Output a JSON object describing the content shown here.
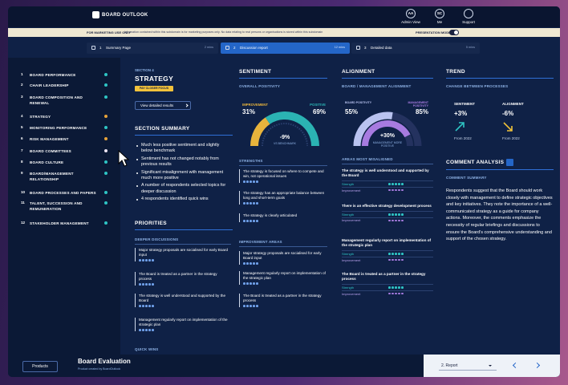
{
  "header": {
    "logo": "BOARD OUTLOOK",
    "menus": [
      {
        "initials": "AA",
        "label": "Admin View"
      },
      {
        "initials": "SC",
        "label": "Me"
      },
      {
        "label": "Support"
      }
    ]
  },
  "notice": {
    "tag": "FOR MARKETING USE ONLY",
    "text": "Information contained within this subdomain is for marketing purposes only. No data relating to real persons or organisations is stored within this subdomain",
    "toggle": "PRESENTATION MODE"
  },
  "tabs": [
    {
      "number": "1",
      "label": "Summary Page",
      "time": "2 mins",
      "active": false
    },
    {
      "number": "2",
      "label": "Discussion report",
      "time": "12 mins",
      "active": true
    },
    {
      "number": "3",
      "label": "Detailed data",
      "time": "5 mins",
      "active": false
    }
  ],
  "nav": [
    {
      "number": "1",
      "label": "BOARD PERFORMANCE",
      "color": "#2ec4c4"
    },
    {
      "number": "2",
      "label": "CHAIR LEADERSHIP",
      "color": "#2ec4c4"
    },
    {
      "number": "3",
      "label": "BOARD COMPOSITION AND RENEWAL",
      "color": "#2ec4c4"
    },
    {
      "number": "4",
      "label": "STRATEGY",
      "color": "#e8a33a"
    },
    {
      "number": "5",
      "label": "MONITORING PERFORMANCE",
      "color": "#2ec4c4"
    },
    {
      "number": "6",
      "label": "RISK MANAGEMENT",
      "color": "#e8a33a"
    },
    {
      "number": "7",
      "label": "BOARD COMMITTEES",
      "color": "#ece4f2"
    },
    {
      "number": "8",
      "label": "BOARD CULTURE",
      "color": "#2ec4c4"
    },
    {
      "number": "9",
      "label": "BOARD/MANAGEMENT RELATIONSHIP",
      "color": "#2ec4c4"
    },
    {
      "number": "10",
      "label": "BOARD PROCESSES AND PAPERS",
      "color": "#2ec4c4"
    },
    {
      "number": "11",
      "label": "TALENT, SUCCESSION AND REMUNERATION",
      "color": "#2ec4c4"
    },
    {
      "number": "12",
      "label": "STAKEHOLDER MANAGEMENT",
      "color": "#2ec4c4"
    }
  ],
  "section": {
    "kicker": "SECTION 4",
    "title": "STRATEGY",
    "badge": "PAY CLOSER FOCUS",
    "button": "View detailed results"
  },
  "summary": {
    "title": "SECTION SUMMARY",
    "bullets": [
      "Much less positive sentiment and slightly below benchmark",
      "Sentiment has not changed notably from previous results",
      "Significant misalignment with management much more positive",
      "A number of respondents selected topics for deeper discussion",
      "4 respondents identified quick wins"
    ]
  },
  "priorities": {
    "title": "PRIORITIES",
    "deeper_title": "DEEPER DISCUSSIONS",
    "deeper": [
      "Major strategy proposals are socialised for early Board input",
      "The Board is treated as a partner in the strategy process",
      "The strategy is well understood and supported by the Board",
      "Management regularly report on implementation of the strategic plan"
    ],
    "quick_title": "QUICK WINS"
  },
  "sentiment": {
    "title": "SENTIMENT",
    "subtitle": "OVERALL POSITIVITY",
    "segments": [
      {
        "name": "IMPROVEMENT",
        "value": 31,
        "label": "31%",
        "color": "#e8b43c"
      },
      {
        "name": "POSITIVE",
        "value": 69,
        "label": "69%",
        "color": "#2bb3b3"
      }
    ],
    "center": "-9%",
    "center_caption": "VS BENCHMARK",
    "strengths_title": "STRENGTHS",
    "strengths": [
      "The strategy is focused on where to compete and win, not operational issues",
      "The strategy has an appropriate balance between long and short-term goals",
      "The strategy is clearly articulated"
    ],
    "improvements_title": "IMPROVEMENT AREAS",
    "improvements": [
      "Major strategy proposals are socialised for early Board input",
      "Management regularly report on implementation of the strategic plan",
      "The Board is treated as a partner in the strategy process"
    ]
  },
  "alignment": {
    "title": "ALIGNMENT",
    "subtitle": "BOARD / MANAGEMENT ALIGNMENT",
    "lim": [
      0,
      100
    ],
    "board": {
      "name": "BOARD POSITIVITY",
      "value": 55,
      "label": "55%",
      "color": "#b9c3f0"
    },
    "management": {
      "name": "MANAGEMENT POSITIVITY",
      "value": 85,
      "label": "85%",
      "color": "#a77be0"
    },
    "center": "+30%",
    "center_caption": "MANAGEMENT MORE POSITIVE",
    "misaligned_title": "AREAS MOST MISALIGNED",
    "misaligned": [
      "The strategy is well understood and supported by the Board",
      "There is an effective strategy development process",
      "Management regularly report on implementation of the strategic plan",
      "The Board is treated as a partner in the strategy process"
    ],
    "row_labels": [
      "Strength",
      "Improvement"
    ]
  },
  "trend": {
    "title": "TREND",
    "subtitle": "CHANGE BETWEEN PROCESSES",
    "items": [
      {
        "name": "SENTIMENT",
        "change": "+3%",
        "note": "From 2022",
        "direction": "up",
        "color": "#2ec4c4"
      },
      {
        "name": "ALIGNMENT",
        "change": "-6%",
        "note": "From 2022",
        "direction": "down",
        "color": "#f0c23a"
      }
    ]
  },
  "comments": {
    "title": "COMMENT ANALYSIS",
    "subtitle": "COMMENT SUMMARY",
    "text": "Respondents suggest that the Board should work closely with management to define strategic objectives and key initiatives. They note the importance of a well-communicated strategy as a guide for company actions. Moreover, the comments emphasize the necessity of regular briefings and discussions to ensure the Board's comprehensive understanding and support of the chosen strategy."
  },
  "footer": {
    "button": "Products",
    "title": "Board Evaluation",
    "subtitle": "Product created by BoardOutlook",
    "select": "2. Report"
  }
}
